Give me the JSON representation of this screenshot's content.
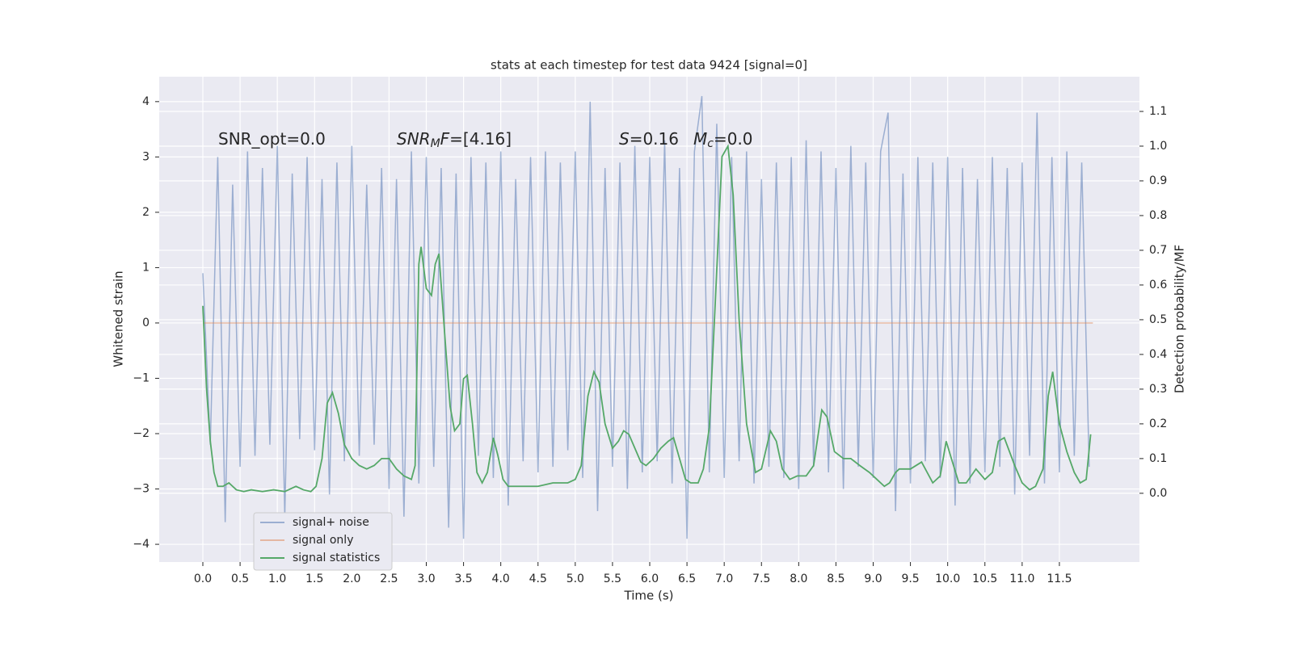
{
  "chart_data": {
    "type": "line",
    "title": "stats at each timestep for test data 9424 [signal=0]",
    "xlabel": "Time (s)",
    "ylabel": "Whitened strain",
    "y2label": "Detection probability/MF",
    "xlim": [
      -0.586,
      12.575
    ],
    "ylim": [
      -4.32,
      4.45
    ],
    "y2lim": [
      -0.198,
      1.2
    ],
    "grid": true,
    "legend": "lower left",
    "xticks": [
      {
        "value": 0,
        "label": "0.0"
      },
      {
        "value": 0.5,
        "label": "0.5"
      },
      {
        "value": 1,
        "label": "1.0"
      },
      {
        "value": 1.5,
        "label": "1.5"
      },
      {
        "value": 2,
        "label": "2.0"
      },
      {
        "value": 2.5,
        "label": "2.5"
      },
      {
        "value": 3,
        "label": "3.0"
      },
      {
        "value": 3.5,
        "label": "3.5"
      },
      {
        "value": 4,
        "label": "4.0"
      },
      {
        "value": 4.5,
        "label": "4.5"
      },
      {
        "value": 5,
        "label": "5.0"
      },
      {
        "value": 5.5,
        "label": "5.5"
      },
      {
        "value": 6,
        "label": "6.0"
      },
      {
        "value": 6.5,
        "label": "6.5"
      },
      {
        "value": 7,
        "label": "7.0"
      },
      {
        "value": 7.5,
        "label": "7.5"
      },
      {
        "value": 8,
        "label": "8.0"
      },
      {
        "value": 8.5,
        "label": "8.5"
      },
      {
        "value": 9,
        "label": "9.0"
      },
      {
        "value": 9.5,
        "label": "9.5"
      },
      {
        "value": 10,
        "label": "10.0"
      },
      {
        "value": 10.5,
        "label": "10.5"
      },
      {
        "value": 11,
        "label": "11.0"
      },
      {
        "value": 11.5,
        "label": "11.5"
      }
    ],
    "yticks": [
      {
        "value": -4,
        "label": "−4"
      },
      {
        "value": -3,
        "label": "−3"
      },
      {
        "value": -2,
        "label": "−2"
      },
      {
        "value": -1,
        "label": "−1"
      },
      0,
      1,
      2,
      3,
      4
    ],
    "y2ticks": [
      {
        "value": 0,
        "label": "0.0"
      },
      {
        "value": 0.1,
        "label": "0.1"
      },
      {
        "value": 0.2,
        "label": "0.2"
      },
      {
        "value": 0.3,
        "label": "0.3"
      },
      {
        "value": 0.4,
        "label": "0.4"
      },
      {
        "value": 0.5,
        "label": "0.5"
      },
      {
        "value": 0.6,
        "label": "0.6"
      },
      {
        "value": 0.7,
        "label": "0.7"
      },
      {
        "value": 0.8,
        "label": "0.8"
      },
      {
        "value": 0.9,
        "label": "0.9"
      },
      {
        "value": 1,
        "label": "1.0"
      },
      {
        "value": 1.1,
        "label": "1.1"
      }
    ],
    "annotations": [
      [
        {
          "text": "SNR_opt=0.0"
        }
      ],
      [
        {
          "text": "SNR",
          "italic": true
        },
        {
          "text": "M",
          "italic": true,
          "sub": true
        },
        {
          "text": "F",
          "italic": true
        },
        {
          "text": "=[4.16]"
        }
      ],
      [
        {
          "text": "S",
          "italic": true
        },
        {
          "text": "=0.16"
        }
      ],
      [
        {
          "text": "M",
          "italic": true
        },
        {
          "text": "c",
          "italic": true,
          "sub": true
        },
        {
          "text": "=0.0"
        }
      ]
    ],
    "series": [
      {
        "name": "signal+ noise",
        "color": "#4c72b0",
        "opacity": 0.5,
        "x": [
          0,
          0.1,
          0.2,
          0.3,
          0.4,
          0.5,
          0.6,
          0.7,
          0.8,
          0.9,
          1,
          1.1,
          1.2,
          1.3,
          1.4,
          1.5,
          1.6,
          1.7,
          1.8,
          1.9,
          2,
          2.1,
          2.2,
          2.3,
          2.4,
          2.5,
          2.6,
          2.7,
          2.8,
          2.9,
          3,
          3.1,
          3.2,
          3.3,
          3.4,
          3.5,
          3.6,
          3.7,
          3.8,
          3.9,
          4,
          4.1,
          4.2,
          4.3,
          4.4,
          4.5,
          4.6,
          4.7,
          4.8,
          4.9,
          5,
          5.1,
          5.2,
          5.3,
          5.4,
          5.5,
          5.6,
          5.7,
          5.8,
          5.9,
          6,
          6.1,
          6.2,
          6.3,
          6.4,
          6.5,
          6.6,
          6.7,
          6.8,
          6.9,
          7,
          7.1,
          7.2,
          7.3,
          7.4,
          7.5,
          7.6,
          7.7,
          7.8,
          7.9,
          8,
          8.1,
          8.2,
          8.3,
          8.4,
          8.5,
          8.6,
          8.7,
          8.8,
          8.9,
          9,
          9.1,
          9.2,
          9.3,
          9.4,
          9.5,
          9.6,
          9.7,
          9.8,
          9.9,
          10,
          10.1,
          10.2,
          10.3,
          10.4,
          10.5,
          10.6,
          10.7,
          10.8,
          10.9,
          11,
          11.1,
          11.2,
          11.3,
          11.4,
          11.5,
          11.6,
          11.7,
          11.8,
          11.9
        ],
        "values": [
          0.9,
          -2.2,
          3.0,
          -3.6,
          2.5,
          -2.6,
          3.1,
          -2.4,
          2.8,
          -2.2,
          3.2,
          -3.5,
          2.7,
          -2.1,
          3.0,
          -2.3,
          2.6,
          -3.1,
          2.9,
          -2.5,
          3.2,
          -2.4,
          2.5,
          -2.2,
          2.8,
          -3.0,
          2.6,
          -3.5,
          3.1,
          -2.9,
          3.0,
          -2.6,
          2.8,
          -3.7,
          2.7,
          -3.9,
          3.0,
          -2.4,
          2.9,
          -2.8,
          3.1,
          -3.3,
          2.6,
          -2.5,
          3.0,
          -2.7,
          3.1,
          -2.6,
          2.9,
          -2.3,
          3.1,
          -2.8,
          4.0,
          -3.4,
          2.8,
          -2.6,
          2.9,
          -3.0,
          3.2,
          -2.7,
          3.0,
          -2.5,
          3.3,
          -2.9,
          2.8,
          -3.9,
          3.1,
          4.1,
          -2.7,
          3.6,
          -2.8,
          3.0,
          -2.5,
          3.1,
          -2.9,
          2.6,
          -2.6,
          2.9,
          -2.8,
          3.0,
          -3.0,
          3.3,
          -2.6,
          3.1,
          -2.7,
          2.8,
          -3.0,
          3.2,
          -2.6,
          2.9,
          -2.8,
          3.1,
          3.8,
          -3.4,
          2.7,
          -2.9,
          3.0,
          -2.5,
          2.9,
          -2.8,
          3.0,
          -3.3,
          2.8,
          -2.9,
          2.6,
          -2.7,
          3.0,
          -2.6,
          2.8,
          -3.1,
          2.9,
          -2.4,
          3.8,
          -2.9,
          3.0,
          -2.7,
          3.1,
          -2.4,
          2.9,
          -2.6
        ]
      },
      {
        "name": "signal only",
        "color": "#dd8452",
        "opacity": 0.5,
        "x": [
          0,
          11.95
        ],
        "values": [
          0,
          0
        ]
      },
      {
        "name": "signal statistics",
        "color": "#55a868",
        "opacity": 1,
        "axis": "y2",
        "x": [
          0,
          0.05,
          0.1,
          0.15,
          0.2,
          0.27,
          0.35,
          0.45,
          0.55,
          0.65,
          0.8,
          0.95,
          1.1,
          1.25,
          1.35,
          1.45,
          1.52,
          1.6,
          1.67,
          1.74,
          1.82,
          1.9,
          2.0,
          2.1,
          2.2,
          2.3,
          2.4,
          2.5,
          2.6,
          2.7,
          2.8,
          2.85,
          2.9,
          2.93,
          3.0,
          3.07,
          3.12,
          3.17,
          3.25,
          3.32,
          3.38,
          3.45,
          3.5,
          3.55,
          3.62,
          3.68,
          3.75,
          3.82,
          3.9,
          3.96,
          4.03,
          4.1,
          4.3,
          4.5,
          4.7,
          4.9,
          5.0,
          5.08,
          5.17,
          5.25,
          5.32,
          5.4,
          5.5,
          5.58,
          5.65,
          5.72,
          5.8,
          5.88,
          5.95,
          6.05,
          6.15,
          6.25,
          6.32,
          6.4,
          6.48,
          6.55,
          6.65,
          6.72,
          6.8,
          6.88,
          6.97,
          7.05,
          7.12,
          7.2,
          7.3,
          7.42,
          7.5,
          7.62,
          7.7,
          7.78,
          7.88,
          7.98,
          8.1,
          8.2,
          8.31,
          8.38,
          8.48,
          8.6,
          8.7,
          8.82,
          8.95,
          9.05,
          9.15,
          9.22,
          9.3,
          9.35,
          9.5,
          9.65,
          9.8,
          9.9,
          9.98,
          10.05,
          10.15,
          10.25,
          10.38,
          10.5,
          10.6,
          10.68,
          10.76,
          10.9,
          11.0,
          11.1,
          11.18,
          11.28,
          11.35,
          11.41,
          11.5,
          11.6,
          11.7,
          11.78,
          11.86,
          11.92
        ],
        "values": [
          0.54,
          0.3,
          0.15,
          0.06,
          0.02,
          0.02,
          0.03,
          0.01,
          0.005,
          0.01,
          0.005,
          0.01,
          0.005,
          0.02,
          0.01,
          0.005,
          0.02,
          0.1,
          0.26,
          0.29,
          0.23,
          0.14,
          0.1,
          0.08,
          0.07,
          0.08,
          0.1,
          0.1,
          0.07,
          0.05,
          0.04,
          0.08,
          0.66,
          0.71,
          0.59,
          0.57,
          0.66,
          0.69,
          0.45,
          0.25,
          0.18,
          0.2,
          0.33,
          0.34,
          0.2,
          0.06,
          0.03,
          0.06,
          0.16,
          0.11,
          0.04,
          0.02,
          0.02,
          0.02,
          0.03,
          0.03,
          0.04,
          0.08,
          0.28,
          0.35,
          0.32,
          0.2,
          0.13,
          0.15,
          0.18,
          0.17,
          0.13,
          0.09,
          0.08,
          0.1,
          0.13,
          0.15,
          0.16,
          0.1,
          0.04,
          0.03,
          0.03,
          0.07,
          0.19,
          0.55,
          0.97,
          1.0,
          0.86,
          0.5,
          0.2,
          0.06,
          0.07,
          0.18,
          0.15,
          0.07,
          0.04,
          0.05,
          0.05,
          0.08,
          0.24,
          0.22,
          0.12,
          0.1,
          0.1,
          0.08,
          0.06,
          0.04,
          0.02,
          0.03,
          0.06,
          0.07,
          0.07,
          0.09,
          0.03,
          0.05,
          0.15,
          0.1,
          0.03,
          0.03,
          0.07,
          0.04,
          0.06,
          0.15,
          0.16,
          0.08,
          0.03,
          0.01,
          0.02,
          0.07,
          0.28,
          0.35,
          0.2,
          0.12,
          0.06,
          0.03,
          0.04,
          0.17
        ]
      }
    ]
  }
}
